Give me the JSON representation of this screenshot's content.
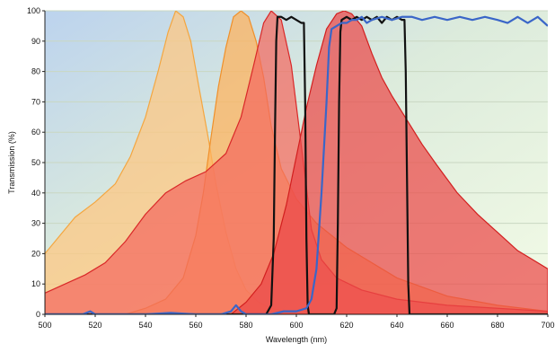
{
  "chart_data": {
    "type": "area",
    "xlabel": "Wavelength (nm)",
    "ylabel": "Transmission (%)",
    "xlim": [
      500,
      700
    ],
    "ylim": [
      0,
      100
    ],
    "x_ticks": [
      "500",
      "520",
      "540",
      "560",
      "580",
      "600",
      "620",
      "640",
      "660",
      "680",
      "700"
    ],
    "y_ticks": [
      "0",
      "10",
      "20",
      "30",
      "40",
      "50",
      "60",
      "70",
      "80",
      "90",
      "100"
    ],
    "grid": true,
    "colors": {
      "background_top_left": "#bcd3ee",
      "background_bottom_right": "#f3fbe6",
      "grid": "#c9d7c2",
      "excitation_light": "#ffc680",
      "excitation_orange": "#ff9a3a",
      "emission_red": "#f03e3e",
      "filter_black": "#111111",
      "dichroic_blue": "#3a66c8"
    },
    "series": [
      {
        "kind": "area",
        "color": "#ffc680",
        "stroke": "#f4a640",
        "points": [
          [
            500,
            20
          ],
          [
            506,
            26
          ],
          [
            512,
            32
          ],
          [
            520,
            37
          ],
          [
            528,
            43
          ],
          [
            534,
            52
          ],
          [
            540,
            65
          ],
          [
            545,
            80
          ],
          [
            549,
            93
          ],
          [
            552,
            100
          ],
          [
            555,
            98
          ],
          [
            558,
            90
          ],
          [
            561,
            76
          ],
          [
            565,
            58
          ],
          [
            568,
            43
          ],
          [
            572,
            27
          ],
          [
            576,
            15
          ],
          [
            580,
            8
          ],
          [
            585,
            4
          ],
          [
            590,
            2
          ],
          [
            596,
            1
          ],
          [
            604,
            0
          ]
        ]
      },
      {
        "kind": "area",
        "color": "#ffb25a",
        "stroke": "#f0902a",
        "points": [
          [
            532,
            0
          ],
          [
            540,
            2
          ],
          [
            548,
            5
          ],
          [
            555,
            12
          ],
          [
            560,
            26
          ],
          [
            563,
            40
          ],
          [
            566,
            58
          ],
          [
            569,
            75
          ],
          [
            572,
            88
          ],
          [
            575,
            98
          ],
          [
            578,
            100
          ],
          [
            581,
            98
          ],
          [
            584,
            90
          ],
          [
            587,
            78
          ],
          [
            590,
            62
          ],
          [
            594,
            48
          ],
          [
            600,
            38
          ],
          [
            608,
            30
          ],
          [
            620,
            22
          ],
          [
            640,
            12
          ],
          [
            660,
            6
          ],
          [
            680,
            3
          ],
          [
            700,
            1
          ]
        ]
      },
      {
        "kind": "area",
        "color": "#f46a60",
        "stroke": "#d92828",
        "points": [
          [
            500,
            7
          ],
          [
            508,
            10
          ],
          [
            516,
            13
          ],
          [
            524,
            17
          ],
          [
            532,
            24
          ],
          [
            540,
            33
          ],
          [
            548,
            40
          ],
          [
            556,
            44
          ],
          [
            564,
            47
          ],
          [
            572,
            53
          ],
          [
            578,
            65
          ],
          [
            583,
            82
          ],
          [
            587,
            96
          ],
          [
            590,
            100
          ],
          [
            594,
            97
          ],
          [
            598,
            82
          ],
          [
            601,
            62
          ],
          [
            604,
            42
          ],
          [
            606,
            28
          ],
          [
            610,
            18
          ],
          [
            616,
            12
          ],
          [
            626,
            8
          ],
          [
            640,
            5
          ],
          [
            660,
            3
          ],
          [
            680,
            2
          ],
          [
            700,
            1
          ]
        ]
      },
      {
        "kind": "area",
        "color": "#ec4848",
        "stroke": "#d21f1f",
        "points": [
          [
            574,
            0
          ],
          [
            580,
            4
          ],
          [
            586,
            10
          ],
          [
            591,
            20
          ],
          [
            596,
            36
          ],
          [
            600,
            52
          ],
          [
            604,
            68
          ],
          [
            608,
            82
          ],
          [
            612,
            94
          ],
          [
            616,
            99
          ],
          [
            619,
            100
          ],
          [
            622,
            99
          ],
          [
            626,
            95
          ],
          [
            630,
            86
          ],
          [
            634,
            78
          ],
          [
            638,
            72
          ],
          [
            644,
            64
          ],
          [
            650,
            56
          ],
          [
            656,
            49
          ],
          [
            664,
            40
          ],
          [
            672,
            33
          ],
          [
            680,
            27
          ],
          [
            688,
            21
          ],
          [
            694,
            18
          ],
          [
            700,
            15
          ]
        ]
      },
      {
        "kind": "line",
        "color": "#111111",
        "points": [
          [
            500,
            0
          ],
          [
            588,
            0
          ],
          [
            590,
            3
          ],
          [
            591,
            25
          ],
          [
            591.5,
            60
          ],
          [
            592,
            90
          ],
          [
            592.5,
            98
          ],
          [
            594,
            98
          ],
          [
            596,
            97
          ],
          [
            598,
            98
          ],
          [
            600,
            97
          ],
          [
            602,
            96
          ],
          [
            603,
            96
          ],
          [
            603.5,
            70
          ],
          [
            604,
            25
          ],
          [
            604.5,
            3
          ],
          [
            605,
            0
          ],
          [
            615,
            0
          ],
          [
            616,
            2
          ],
          [
            616.5,
            30
          ],
          [
            617,
            70
          ],
          [
            617.5,
            93
          ],
          [
            618,
            97
          ],
          [
            620,
            98
          ],
          [
            622,
            97
          ],
          [
            624,
            98
          ],
          [
            626,
            97
          ],
          [
            628,
            98
          ],
          [
            630,
            97
          ],
          [
            632,
            98
          ],
          [
            634,
            96
          ],
          [
            636,
            98
          ],
          [
            638,
            97
          ],
          [
            640,
            98
          ],
          [
            642,
            97
          ],
          [
            643,
            97
          ],
          [
            643.5,
            80
          ],
          [
            644,
            45
          ],
          [
            644.5,
            10
          ],
          [
            645,
            0
          ],
          [
            700,
            0
          ]
        ]
      },
      {
        "kind": "line",
        "color": "#3a66c8",
        "points": [
          [
            500,
            0
          ],
          [
            515,
            0
          ],
          [
            518,
            1
          ],
          [
            520,
            0
          ],
          [
            530,
            0
          ],
          [
            540,
            0
          ],
          [
            550,
            0.5
          ],
          [
            560,
            0
          ],
          [
            565,
            0
          ],
          [
            570,
            0
          ],
          [
            574,
            1
          ],
          [
            576,
            3
          ],
          [
            578,
            1
          ],
          [
            580,
            0
          ],
          [
            590,
            0
          ],
          [
            595,
            1
          ],
          [
            600,
            1
          ],
          [
            604,
            2
          ],
          [
            606,
            5
          ],
          [
            608,
            15
          ],
          [
            610,
            40
          ],
          [
            612,
            70
          ],
          [
            613,
            88
          ],
          [
            614,
            94
          ],
          [
            616,
            95
          ],
          [
            618,
            96
          ],
          [
            620,
            96
          ],
          [
            622,
            97
          ],
          [
            624,
            97
          ],
          [
            626,
            98
          ],
          [
            628,
            96
          ],
          [
            630,
            97
          ],
          [
            634,
            98
          ],
          [
            638,
            97
          ],
          [
            642,
            98
          ],
          [
            646,
            98
          ],
          [
            650,
            97
          ],
          [
            655,
            98
          ],
          [
            660,
            97
          ],
          [
            665,
            98
          ],
          [
            670,
            97
          ],
          [
            675,
            98
          ],
          [
            680,
            97
          ],
          [
            684,
            96
          ],
          [
            688,
            98
          ],
          [
            692,
            96
          ],
          [
            696,
            98
          ],
          [
            700,
            95
          ]
        ]
      }
    ]
  }
}
